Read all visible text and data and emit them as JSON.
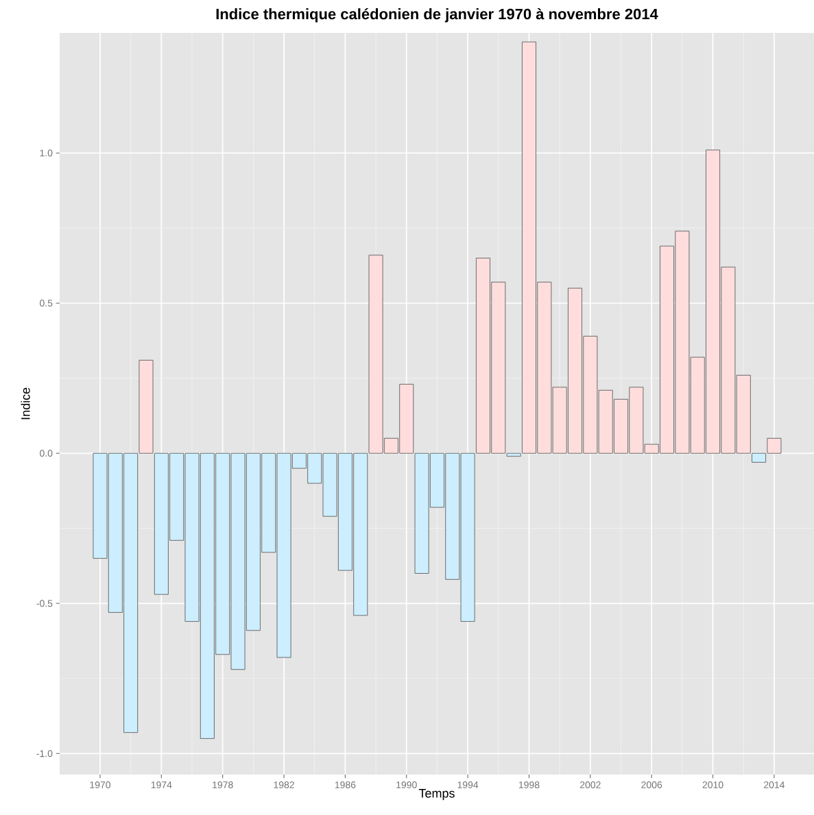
{
  "chart_data": {
    "type": "bar",
    "title": "Indice thermique calédonien de janvier 1970 à novembre 2014",
    "xlabel": "Temps",
    "ylabel": "Indice",
    "x": [
      1970,
      1971,
      1972,
      1973,
      1974,
      1975,
      1976,
      1977,
      1978,
      1979,
      1980,
      1981,
      1982,
      1983,
      1984,
      1985,
      1986,
      1987,
      1988,
      1989,
      1990,
      1991,
      1992,
      1993,
      1994,
      1995,
      1996,
      1997,
      1998,
      1999,
      2000,
      2001,
      2002,
      2003,
      2004,
      2005,
      2006,
      2007,
      2008,
      2009,
      2010,
      2011,
      2012,
      2013,
      2014
    ],
    "values": [
      -0.35,
      -0.53,
      -0.93,
      0.31,
      -0.47,
      -0.29,
      -0.56,
      -0.95,
      -0.67,
      -0.72,
      -0.59,
      -0.33,
      -0.68,
      -0.05,
      -0.1,
      -0.21,
      -0.39,
      -0.54,
      0.66,
      0.05,
      0.23,
      -0.4,
      -0.18,
      -0.42,
      -0.56,
      0.65,
      0.57,
      -0.01,
      1.37,
      0.57,
      0.22,
      0.55,
      0.39,
      0.21,
      0.18,
      0.22,
      0.03,
      0.69,
      0.74,
      0.32,
      1.01,
      0.62,
      0.26,
      -0.03,
      0.05
    ],
    "colors": [
      "#cceeff",
      "#cceeff",
      "#cceeff",
      "#ffdddd",
      "#cceeff",
      "#cceeff",
      "#cceeff",
      "#cceeff",
      "#cceeff",
      "#cceeff",
      "#cceeff",
      "#cceeff",
      "#cceeff",
      "#cceeff",
      "#cceeff",
      "#cceeff",
      "#cceeff",
      "#cceeff",
      "#ffdddd",
      "#ffdddd",
      "#ffdddd",
      "#cceeff",
      "#cceeff",
      "#cceeff",
      "#cceeff",
      "#ffdddd",
      "#ffdddd",
      "#cceeff",
      "#ffdddd",
      "#ffdddd",
      "#ffdddd",
      "#ffdddd",
      "#ffdddd",
      "#ffdddd",
      "#ffdddd",
      "#ffdddd",
      "#ffdddd",
      "#ffdddd",
      "#ffdddd",
      "#ffdddd",
      "#ffdddd",
      "#ffdddd",
      "#ffdddd",
      "#cceeff",
      "#ffdddd"
    ],
    "xlim": [
      1967.36,
      2016.6
    ],
    "ylim": [
      -1.07,
      1.4
    ],
    "xticks": [
      1970,
      1974,
      1978,
      1982,
      1986,
      1990,
      1994,
      1998,
      2002,
      2006,
      2010,
      2014
    ],
    "yticks": [
      {
        "value": -1.0,
        "label": "-1.0"
      },
      {
        "value": -0.5,
        "label": "-0.5"
      },
      {
        "value": 0.0,
        "label": "0.0"
      },
      {
        "value": 0.5,
        "label": "0.5"
      },
      {
        "value": 1.0,
        "label": "1.0"
      }
    ],
    "grid": true
  }
}
